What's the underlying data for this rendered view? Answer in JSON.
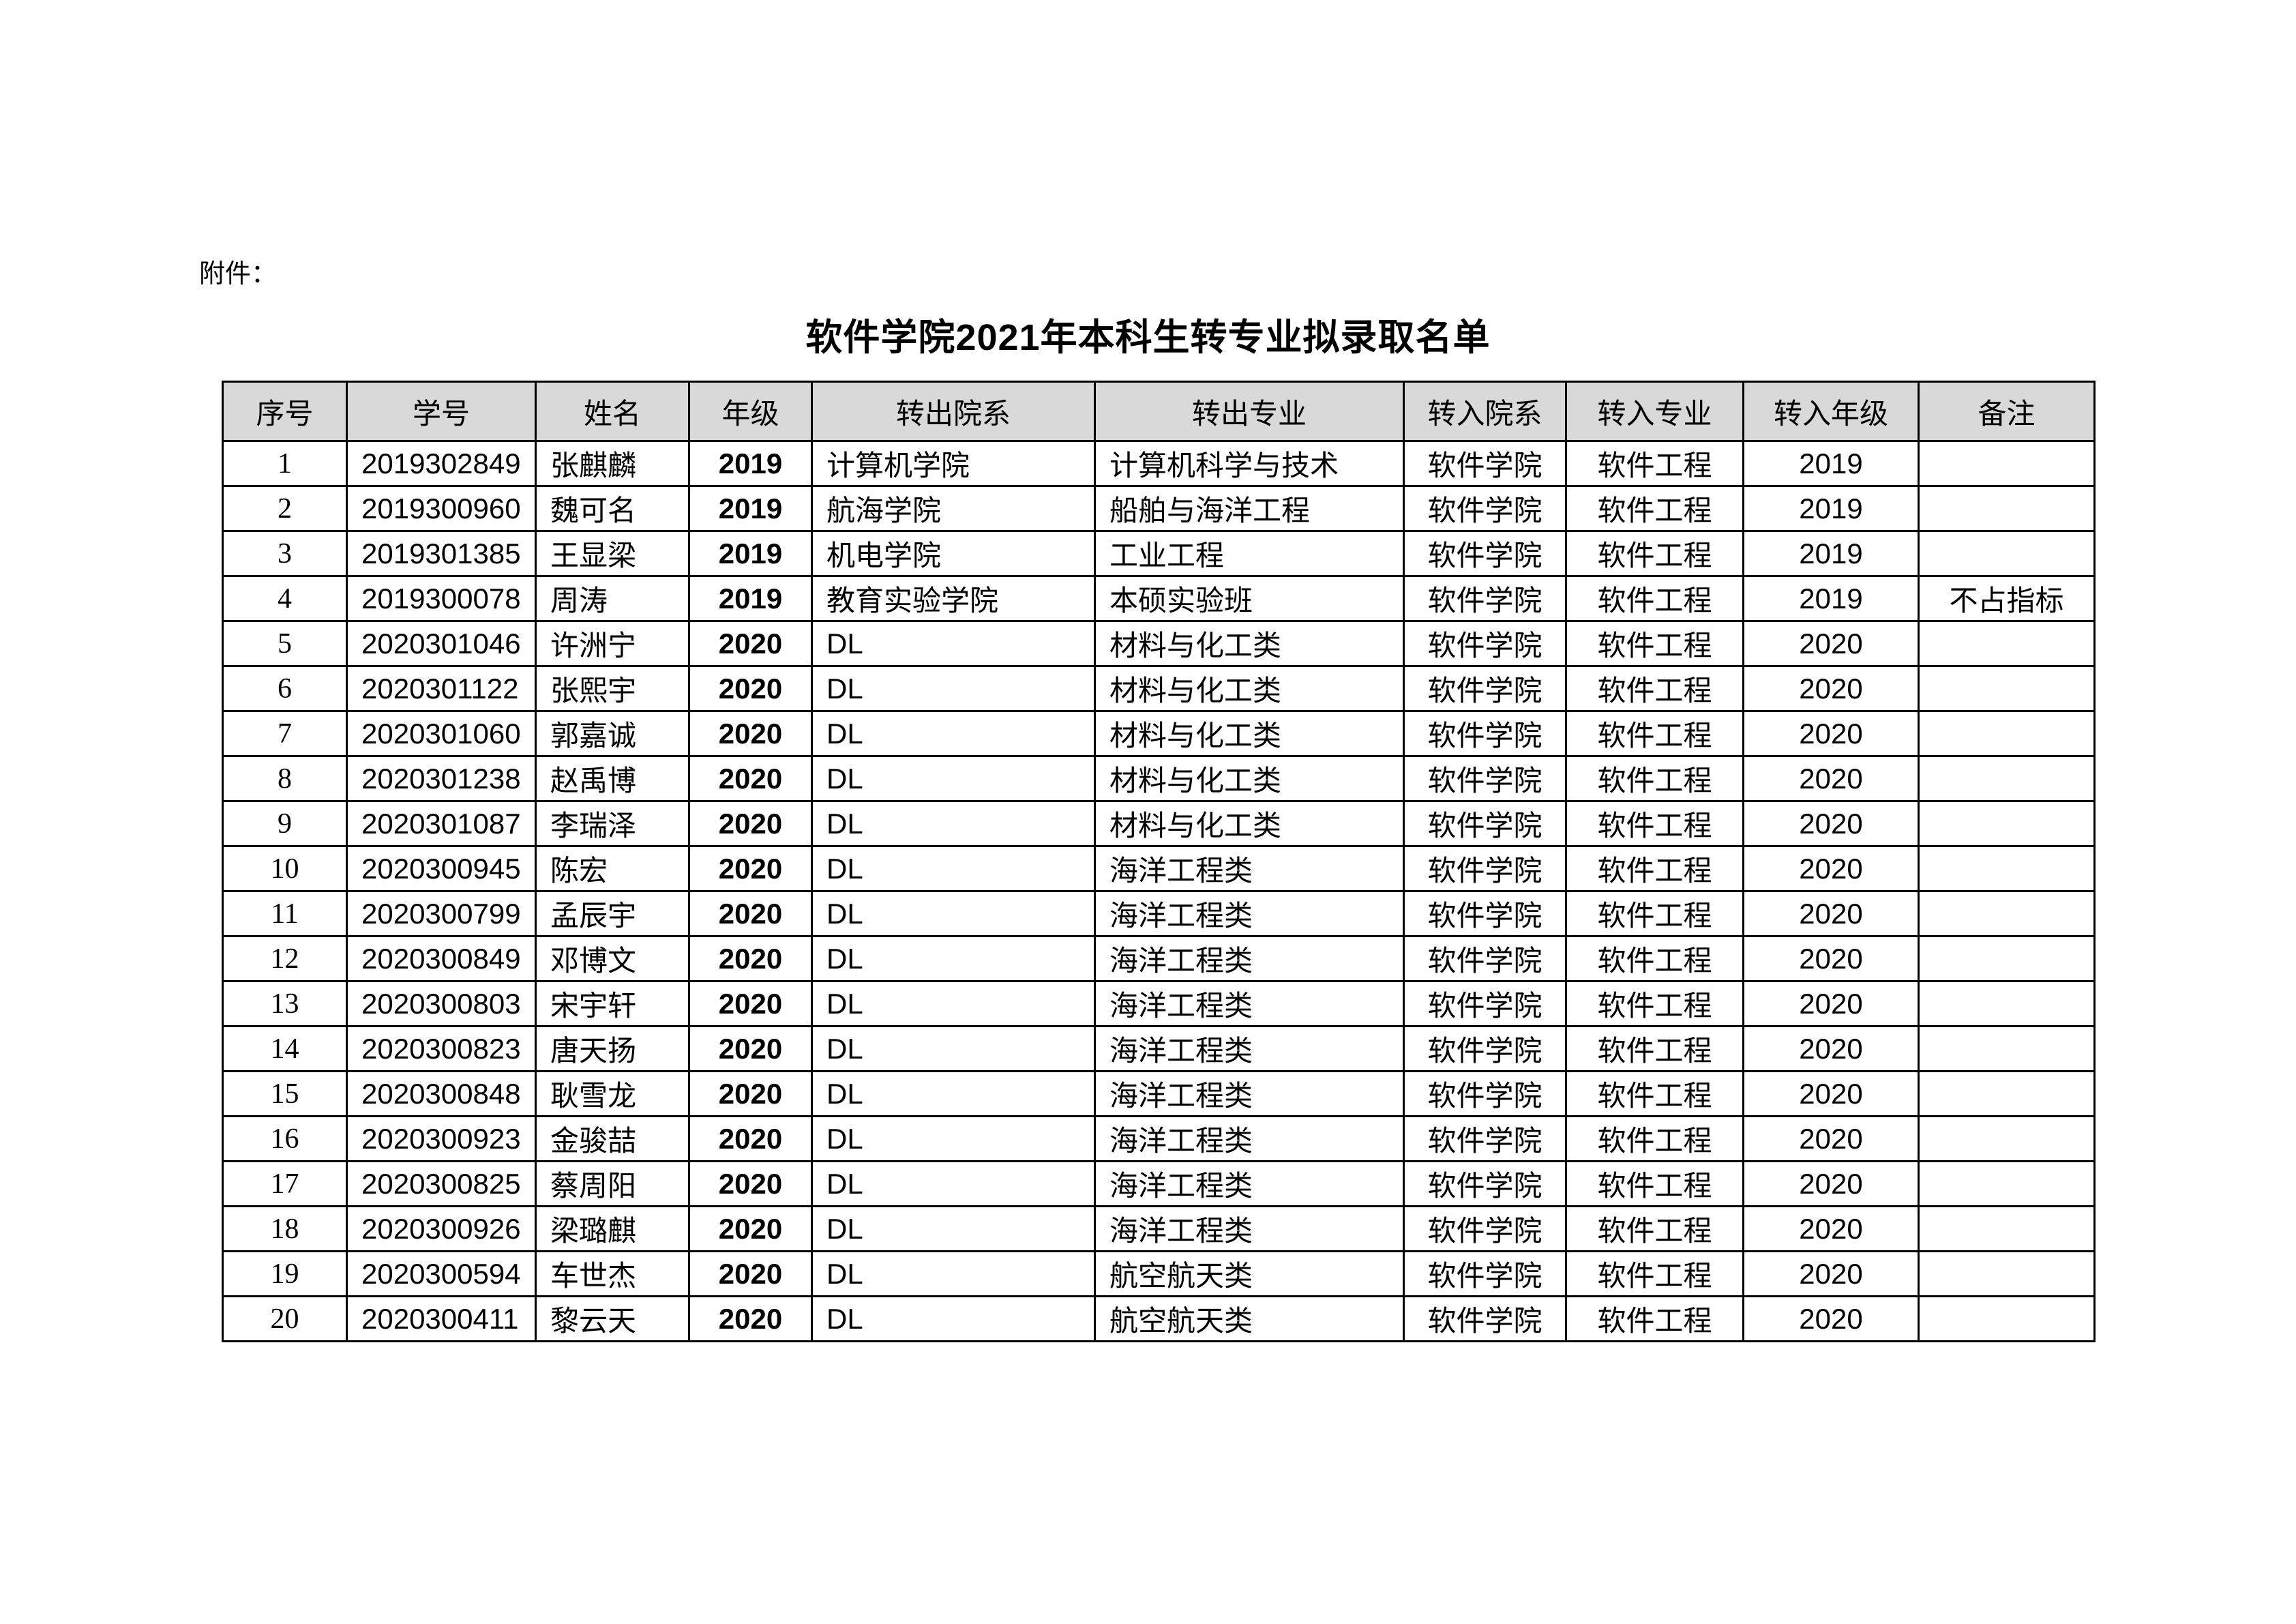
{
  "attachment_label": "附件：",
  "title": "软件学院2021年本科生转专业拟录取名单",
  "table": {
    "headers": [
      "序号",
      "学号",
      "姓名",
      "年级",
      "转出院系",
      "转出专业",
      "转入院系",
      "转入专业",
      "转入年级",
      "备注"
    ],
    "rows": [
      [
        "1",
        "2019302849",
        "张麒麟",
        "2019",
        "计算机学院",
        "计算机科学与技术",
        "软件学院",
        "软件工程",
        "2019",
        ""
      ],
      [
        "2",
        "2019300960",
        "魏可名",
        "2019",
        "航海学院",
        "船舶与海洋工程",
        "软件学院",
        "软件工程",
        "2019",
        ""
      ],
      [
        "3",
        "2019301385",
        "王显梁",
        "2019",
        "机电学院",
        "工业工程",
        "软件学院",
        "软件工程",
        "2019",
        ""
      ],
      [
        "4",
        "2019300078",
        "周涛",
        "2019",
        "教育实验学院",
        "本硕实验班",
        "软件学院",
        "软件工程",
        "2019",
        "不占指标"
      ],
      [
        "5",
        "2020301046",
        "许洲宁",
        "2020",
        "DL",
        "材料与化工类",
        "软件学院",
        "软件工程",
        "2020",
        ""
      ],
      [
        "6",
        "2020301122",
        "张熙宇",
        "2020",
        "DL",
        "材料与化工类",
        "软件学院",
        "软件工程",
        "2020",
        ""
      ],
      [
        "7",
        "2020301060",
        "郭嘉诚",
        "2020",
        "DL",
        "材料与化工类",
        "软件学院",
        "软件工程",
        "2020",
        ""
      ],
      [
        "8",
        "2020301238",
        "赵禹博",
        "2020",
        "DL",
        "材料与化工类",
        "软件学院",
        "软件工程",
        "2020",
        ""
      ],
      [
        "9",
        "2020301087",
        "李瑞泽",
        "2020",
        "DL",
        "材料与化工类",
        "软件学院",
        "软件工程",
        "2020",
        ""
      ],
      [
        "10",
        "2020300945",
        "陈宏",
        "2020",
        "DL",
        "海洋工程类",
        "软件学院",
        "软件工程",
        "2020",
        ""
      ],
      [
        "11",
        "2020300799",
        "孟辰宇",
        "2020",
        "DL",
        "海洋工程类",
        "软件学院",
        "软件工程",
        "2020",
        ""
      ],
      [
        "12",
        "2020300849",
        "邓博文",
        "2020",
        "DL",
        "海洋工程类",
        "软件学院",
        "软件工程",
        "2020",
        ""
      ],
      [
        "13",
        "2020300803",
        "宋宇轩",
        "2020",
        "DL",
        "海洋工程类",
        "软件学院",
        "软件工程",
        "2020",
        ""
      ],
      [
        "14",
        "2020300823",
        "唐天扬",
        "2020",
        "DL",
        "海洋工程类",
        "软件学院",
        "软件工程",
        "2020",
        ""
      ],
      [
        "15",
        "2020300848",
        "耿雪龙",
        "2020",
        "DL",
        "海洋工程类",
        "软件学院",
        "软件工程",
        "2020",
        ""
      ],
      [
        "16",
        "2020300923",
        "金骏喆",
        "2020",
        "DL",
        "海洋工程类",
        "软件学院",
        "软件工程",
        "2020",
        ""
      ],
      [
        "17",
        "2020300825",
        "蔡周阳",
        "2020",
        "DL",
        "海洋工程类",
        "软件学院",
        "软件工程",
        "2020",
        ""
      ],
      [
        "18",
        "2020300926",
        "梁璐麒",
        "2020",
        "DL",
        "海洋工程类",
        "软件学院",
        "软件工程",
        "2020",
        ""
      ],
      [
        "19",
        "2020300594",
        "车世杰",
        "2020",
        "DL",
        "航空航天类",
        "软件学院",
        "软件工程",
        "2020",
        ""
      ],
      [
        "20",
        "2020300411",
        "黎云天",
        "2020",
        "DL",
        "航空航天类",
        "软件学院",
        "软件工程",
        "2020",
        ""
      ]
    ]
  },
  "colors": {
    "header_bg": "#d9d9d9",
    "border": "#000000"
  }
}
